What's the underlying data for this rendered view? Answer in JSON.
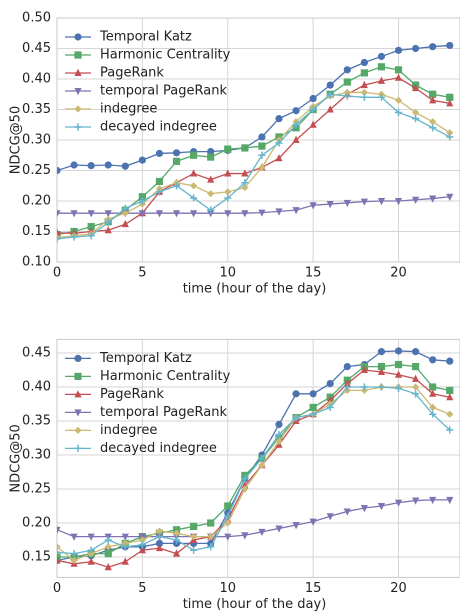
{
  "chart_data": [
    {
      "type": "line",
      "ylabel": "NDCG@50",
      "xlabel": "time (hour of the day)",
      "x": [
        0,
        1,
        2,
        3,
        4,
        5,
        6,
        7,
        8,
        9,
        10,
        11,
        12,
        13,
        14,
        15,
        16,
        17,
        18,
        19,
        20,
        21,
        22,
        23
      ],
      "xlim": [
        0,
        23.6
      ],
      "xticks": [
        0,
        5,
        10,
        15,
        20
      ],
      "ylim": [
        0.1,
        0.5
      ],
      "yticks": [
        {
          "value": 0.1,
          "label": "0.10"
        },
        0.15,
        {
          "value": 0.2,
          "label": "0.20"
        },
        0.25,
        {
          "value": 0.3,
          "label": "0.30"
        },
        0.35,
        {
          "value": 0.4,
          "label": "0.40"
        },
        0.45,
        {
          "value": 0.5,
          "label": "0.50"
        }
      ],
      "grid": true,
      "legend": "upper-left",
      "series": [
        {
          "name": "Temporal Katz",
          "color": "#4c72b0",
          "marker": "circle",
          "values": [
            0.25,
            0.259,
            0.258,
            0.259,
            0.257,
            0.267,
            0.278,
            0.279,
            0.281,
            0.281,
            0.283,
            0.287,
            0.305,
            0.335,
            0.348,
            0.368,
            0.39,
            0.415,
            0.427,
            0.437,
            0.447,
            0.45,
            0.453,
            0.455
          ]
        },
        {
          "name": "Harmonic Centrality",
          "color": "#55a868",
          "marker": "square",
          "values": [
            0.145,
            0.15,
            0.158,
            0.166,
            0.185,
            0.207,
            0.232,
            0.265,
            0.275,
            0.272,
            0.285,
            0.287,
            0.29,
            0.305,
            0.32,
            0.35,
            0.375,
            0.395,
            0.41,
            0.42,
            0.415,
            0.39,
            0.375,
            0.37
          ]
        },
        {
          "name": "PageRank",
          "color": "#c44e52",
          "marker": "triangle-up",
          "values": [
            0.148,
            0.147,
            0.15,
            0.152,
            0.162,
            0.18,
            0.215,
            0.23,
            0.245,
            0.235,
            0.245,
            0.245,
            0.255,
            0.27,
            0.3,
            0.325,
            0.35,
            0.375,
            0.39,
            0.397,
            0.402,
            0.385,
            0.365,
            0.36
          ]
        },
        {
          "name": "temporal PageRank",
          "color": "#8172b2",
          "marker": "triangle-down",
          "values": [
            0.18,
            0.18,
            0.18,
            0.18,
            0.18,
            0.18,
            0.18,
            0.18,
            0.18,
            0.18,
            0.18,
            0.18,
            0.181,
            0.183,
            0.185,
            0.193,
            0.195,
            0.197,
            0.199,
            0.2,
            0.2,
            0.202,
            0.204,
            0.207
          ]
        },
        {
          "name": "indegree",
          "color": "#ccb974",
          "marker": "diamond",
          "values": [
            0.14,
            0.143,
            0.146,
            0.17,
            0.18,
            0.195,
            0.22,
            0.23,
            0.225,
            0.212,
            0.215,
            0.222,
            0.255,
            0.3,
            0.33,
            0.355,
            0.372,
            0.378,
            0.378,
            0.375,
            0.365,
            0.345,
            0.33,
            0.312
          ]
        },
        {
          "name": "decayed indegree",
          "color": "#64b5cd",
          "marker": "plus",
          "values": [
            0.138,
            0.141,
            0.143,
            0.165,
            0.188,
            0.2,
            0.215,
            0.225,
            0.205,
            0.185,
            0.205,
            0.23,
            0.275,
            0.295,
            0.325,
            0.35,
            0.375,
            0.372,
            0.37,
            0.37,
            0.345,
            0.335,
            0.32,
            0.305
          ]
        }
      ]
    },
    {
      "type": "line",
      "ylabel": "NDCG@50",
      "xlabel": "time (hour of the day)",
      "x": [
        0,
        1,
        2,
        3,
        4,
        5,
        6,
        7,
        8,
        9,
        10,
        11,
        12,
        13,
        14,
        15,
        16,
        17,
        18,
        19,
        20,
        21,
        22,
        23
      ],
      "xlim": [
        0,
        23.6
      ],
      "xticks": [
        0,
        5,
        10,
        15,
        20
      ],
      "ylim": [
        0.12,
        0.47
      ],
      "yticks": [
        0.15,
        {
          "value": 0.2,
          "label": "0.20"
        },
        0.25,
        {
          "value": 0.3,
          "label": "0.30"
        },
        0.35,
        {
          "value": 0.4,
          "label": "0.40"
        },
        0.45
      ],
      "grid": true,
      "legend": "upper-left",
      "series": [
        {
          "name": "Temporal Katz",
          "color": "#4c72b0",
          "marker": "circle",
          "values": [
            0.145,
            0.15,
            0.152,
            0.16,
            0.165,
            0.165,
            0.17,
            0.17,
            0.17,
            0.17,
            0.215,
            0.265,
            0.3,
            0.345,
            0.39,
            0.39,
            0.405,
            0.43,
            0.433,
            0.452,
            0.453,
            0.452,
            0.44,
            0.438
          ]
        },
        {
          "name": "Harmonic Centrality",
          "color": "#55a868",
          "marker": "square",
          "values": [
            0.15,
            0.15,
            0.155,
            0.155,
            0.17,
            0.18,
            0.185,
            0.19,
            0.195,
            0.2,
            0.225,
            0.27,
            0.295,
            0.325,
            0.355,
            0.37,
            0.385,
            0.41,
            0.43,
            0.43,
            0.433,
            0.43,
            0.4,
            0.395
          ]
        },
        {
          "name": "PageRank",
          "color": "#c44e52",
          "marker": "triangle-up",
          "values": [
            0.145,
            0.14,
            0.143,
            0.135,
            0.143,
            0.16,
            0.163,
            0.155,
            0.175,
            0.18,
            0.205,
            0.255,
            0.285,
            0.315,
            0.35,
            0.36,
            0.38,
            0.405,
            0.425,
            0.422,
            0.418,
            0.412,
            0.39,
            0.385
          ]
        },
        {
          "name": "temporal PageRank",
          "color": "#8172b2",
          "marker": "triangle-down",
          "values": [
            0.19,
            0.18,
            0.18,
            0.18,
            0.18,
            0.18,
            0.18,
            0.18,
            0.18,
            0.18,
            0.18,
            0.182,
            0.187,
            0.192,
            0.197,
            0.202,
            0.21,
            0.217,
            0.222,
            0.225,
            0.23,
            0.233,
            0.234,
            0.234
          ]
        },
        {
          "name": "indegree",
          "color": "#ccb974",
          "marker": "diamond",
          "values": [
            0.165,
            0.145,
            0.155,
            0.165,
            0.17,
            0.175,
            0.188,
            0.185,
            0.18,
            0.18,
            0.2,
            0.25,
            0.285,
            0.32,
            0.355,
            0.36,
            0.375,
            0.395,
            0.395,
            0.4,
            0.4,
            0.4,
            0.37,
            0.36
          ]
        },
        {
          "name": "decayed indegree",
          "color": "#64b5cd",
          "marker": "plus",
          "values": [
            0.157,
            0.155,
            0.16,
            0.175,
            0.165,
            0.168,
            0.18,
            0.175,
            0.16,
            0.165,
            0.21,
            0.265,
            0.295,
            0.33,
            0.355,
            0.36,
            0.37,
            0.4,
            0.4,
            0.4,
            0.398,
            0.39,
            0.36,
            0.337
          ]
        }
      ]
    }
  ]
}
